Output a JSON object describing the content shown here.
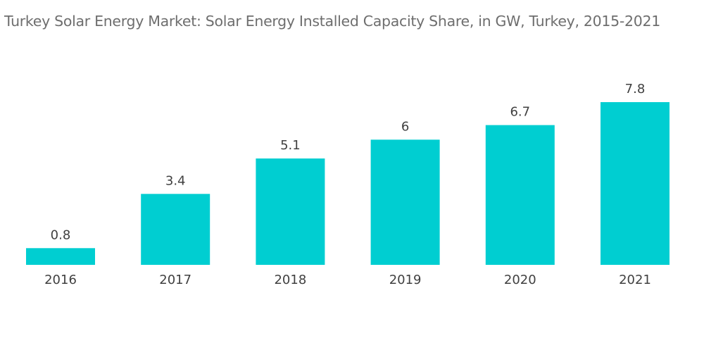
{
  "chart_data": {
    "type": "bar",
    "title": "Turkey Solar Energy Market: Solar Energy Installed Capacity Share, in GW, Turkey, 2015-2021",
    "categories": [
      "2016",
      "2017",
      "2018",
      "2019",
      "2020",
      "2021"
    ],
    "values": [
      0.8,
      3.4,
      5.1,
      6,
      6.7,
      7.8
    ],
    "data_labels": [
      "0.8",
      "3.4",
      "5.1",
      "6",
      "6.7",
      "7.8"
    ],
    "xlabel": "",
    "ylabel": "",
    "ylim": [
      0,
      7.8
    ],
    "grid": false,
    "legend": "none",
    "colors": {
      "bar": "#00ced1"
    }
  }
}
